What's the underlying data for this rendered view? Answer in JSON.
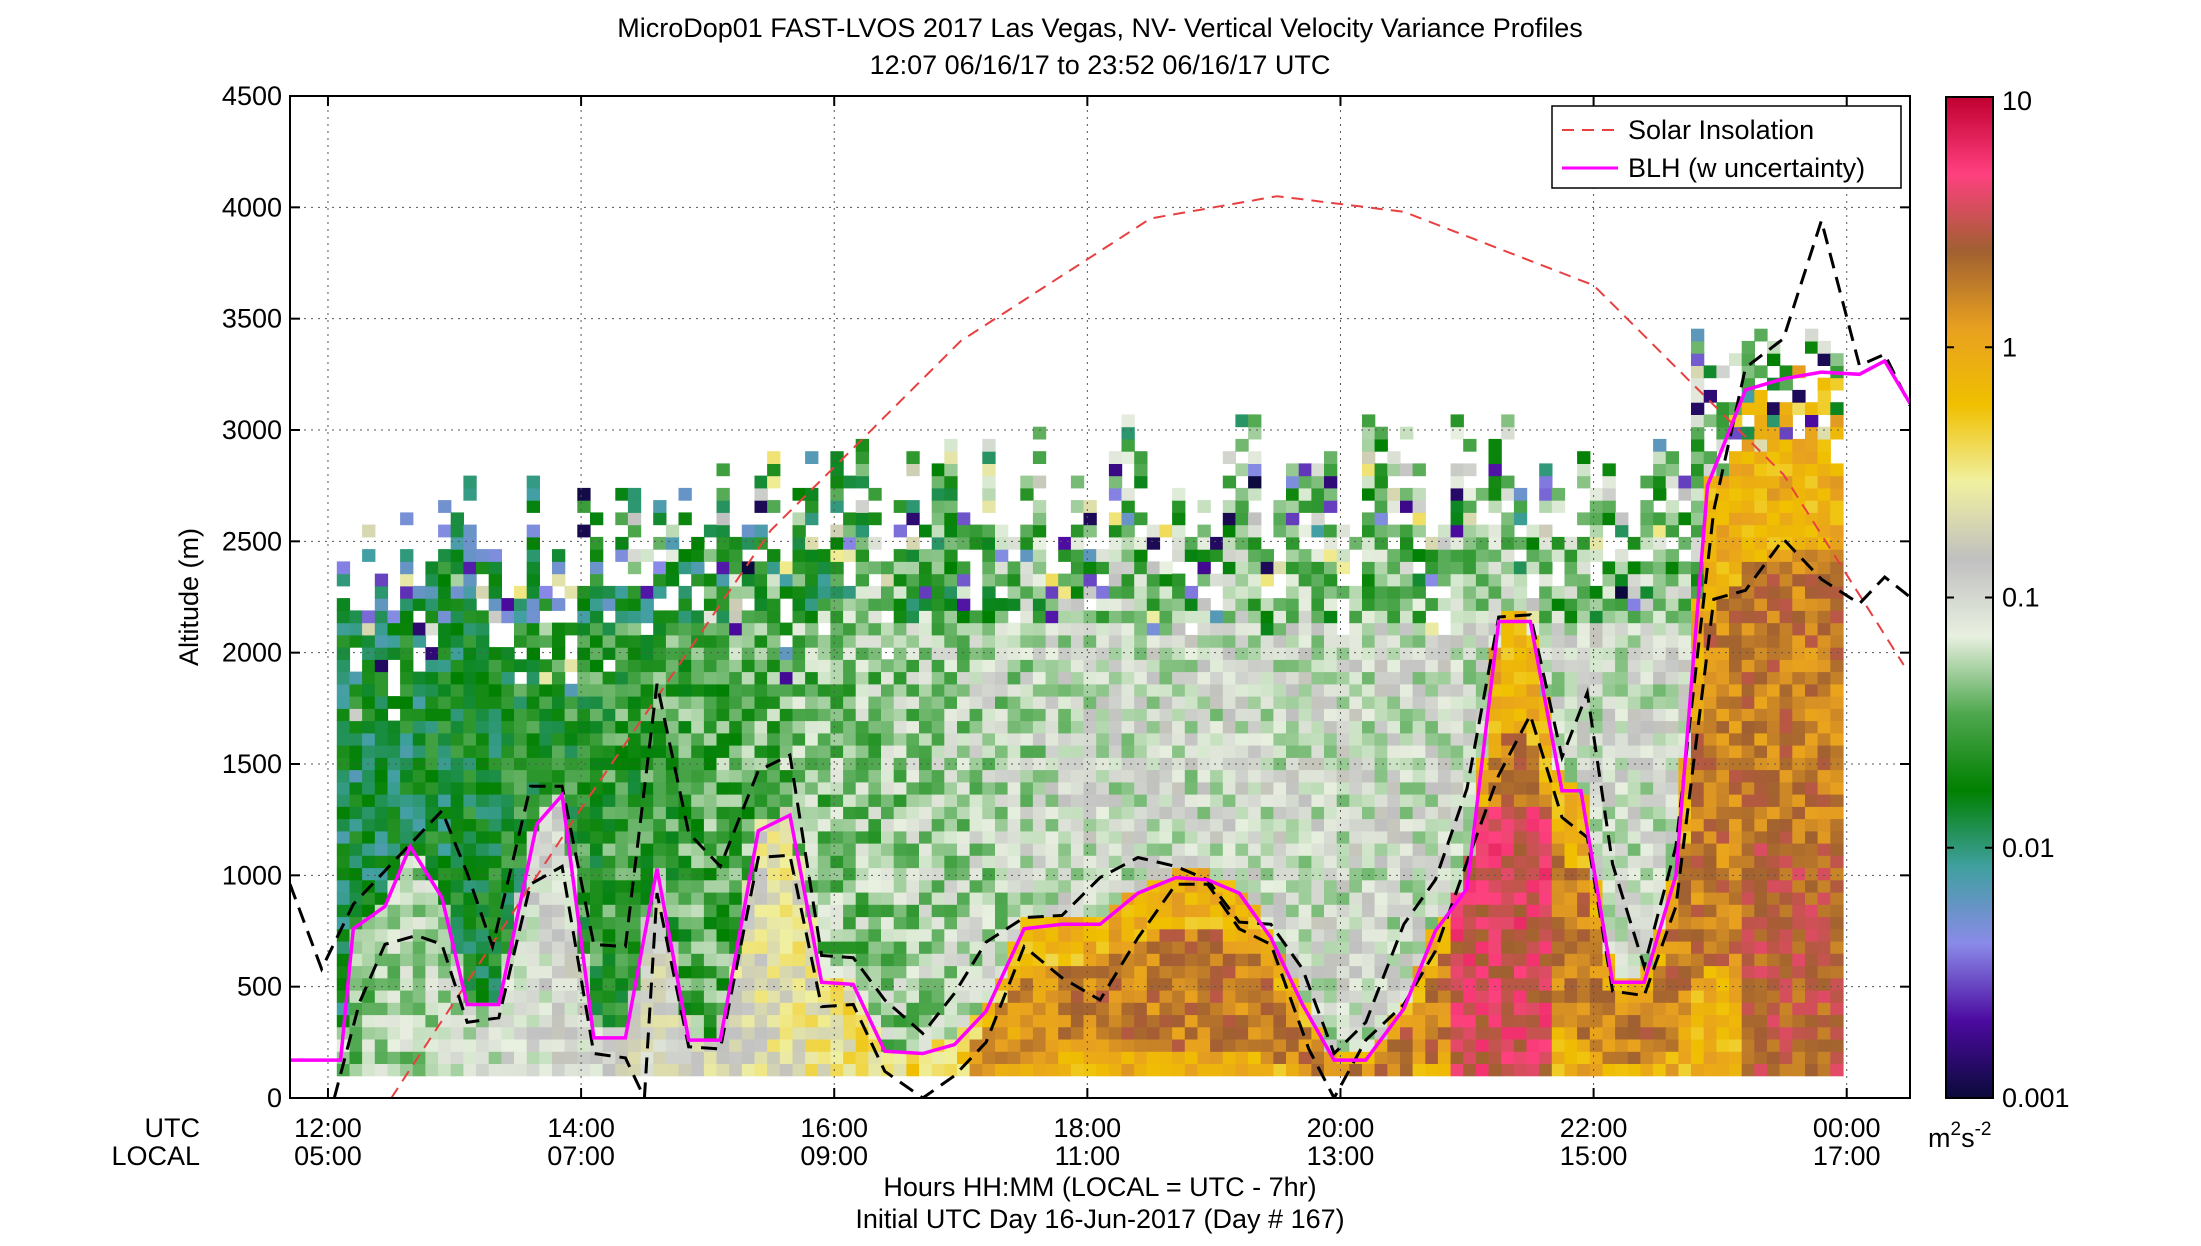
{
  "chart_data": {
    "type": "heatmap",
    "title": "MicroDop01 FAST-LVOS 2017 Las Vegas, NV- Vertical Velocity Variance Profiles",
    "subtitle": "12:07 06/16/17 to 23:52 06/16/17  UTC",
    "ylabel": "Altitude (m)",
    "xlabel": "Hours HH:MM  (LOCAL = UTC - 7hr)",
    "xlabel2": "Initial UTC Day 16-Jun-2017 (Day # 167)",
    "x_row_labels": [
      "UTC",
      "LOCAL"
    ],
    "xlim": [
      11.7,
      24.5
    ],
    "ylim": [
      0,
      4500
    ],
    "x_ticks": [
      {
        "utc": "12:00",
        "local": "05:00",
        "hour": 12
      },
      {
        "utc": "14:00",
        "local": "07:00",
        "hour": 14
      },
      {
        "utc": "16:00",
        "local": "09:00",
        "hour": 16
      },
      {
        "utc": "18:00",
        "local": "11:00",
        "hour": 18
      },
      {
        "utc": "20:00",
        "local": "13:00",
        "hour": 20
      },
      {
        "utc": "22:00",
        "local": "15:00",
        "hour": 22
      },
      {
        "utc": "00:00",
        "local": "17:00",
        "hour": 24
      }
    ],
    "y_ticks": [
      "0",
      "500",
      "1000",
      "1500",
      "2000",
      "2500",
      "3000",
      "3500",
      "4000",
      "4500"
    ],
    "grid": true,
    "legend_position": "top-right",
    "legend": [
      {
        "label": "Solar Insolation",
        "color": "#e84040",
        "style": "dashed"
      },
      {
        "label": "BLH (w uncertainty)",
        "color": "#ff00ff",
        "style": "solid"
      }
    ],
    "colorbar": {
      "scale": "log",
      "range": [
        0.001,
        10
      ],
      "ticks": [
        "10",
        "1",
        "0.1",
        "0.01",
        "0.001"
      ],
      "unit_base": "m",
      "unit_sup1": "2",
      "unit_mid": "s",
      "unit_sup2": "-2",
      "stops": [
        "#0a0a3a",
        "#4b0aa0",
        "#8a8ae8",
        "#40a0a0",
        "#008000",
        "#50a850",
        "#e8f0e0",
        "#c0c0c0",
        "#f0f0a0",
        "#f0c000",
        "#e8a020",
        "#a06030",
        "#ff4080",
        "#c00030"
      ]
    },
    "series": [
      {
        "name": "BLH (w uncertainty)",
        "x": [
          11.7,
          12.1,
          12.2,
          12.45,
          12.65,
          12.9,
          13.1,
          13.35,
          13.65,
          13.85,
          14.1,
          14.35,
          14.6,
          14.85,
          15.1,
          15.4,
          15.65,
          15.9,
          16.15,
          16.4,
          16.7,
          16.95,
          17.2,
          17.5,
          17.8,
          18.1,
          18.4,
          18.7,
          18.95,
          19.2,
          19.45,
          19.7,
          19.95,
          20.2,
          20.5,
          20.75,
          21.0,
          21.25,
          21.5,
          21.75,
          21.9,
          22.15,
          22.4,
          22.65,
          22.9,
          23.2,
          23.5,
          23.8,
          24.1,
          24.3,
          24.5
        ],
        "y": [
          170,
          170,
          760,
          860,
          1130,
          900,
          420,
          420,
          1230,
          1360,
          270,
          270,
          1030,
          260,
          260,
          1200,
          1270,
          520,
          510,
          210,
          200,
          240,
          390,
          760,
          780,
          780,
          920,
          990,
          980,
          920,
          720,
          420,
          170,
          170,
          400,
          750,
          940,
          2140,
          2140,
          1380,
          1380,
          520,
          520,
          1000,
          2750,
          3180,
          3230,
          3260,
          3250,
          3310,
          3120
        ]
      }
    ],
    "blh_upper": [
      [
        11.7,
        960
      ],
      [
        11.95,
        580
      ],
      [
        12.2,
        870
      ],
      [
        12.45,
        1020
      ],
      [
        12.7,
        1170
      ],
      [
        12.9,
        1290
      ],
      [
        13.1,
        1010
      ],
      [
        13.3,
        680
      ],
      [
        13.6,
        1400
      ],
      [
        13.85,
        1400
      ],
      [
        14.1,
        690
      ],
      [
        14.35,
        680
      ],
      [
        14.6,
        1860
      ],
      [
        14.85,
        1190
      ],
      [
        15.1,
        1040
      ],
      [
        15.4,
        1470
      ],
      [
        15.65,
        1540
      ],
      [
        15.9,
        640
      ],
      [
        16.15,
        630
      ],
      [
        16.4,
        440
      ],
      [
        16.7,
        290
      ],
      [
        16.95,
        470
      ],
      [
        17.2,
        700
      ],
      [
        17.5,
        810
      ],
      [
        17.8,
        820
      ],
      [
        18.1,
        990
      ],
      [
        18.4,
        1080
      ],
      [
        18.7,
        1040
      ],
      [
        18.95,
        980
      ],
      [
        19.2,
        790
      ],
      [
        19.45,
        780
      ],
      [
        19.7,
        580
      ],
      [
        19.95,
        200
      ],
      [
        20.2,
        340
      ],
      [
        20.5,
        780
      ],
      [
        20.75,
        980
      ],
      [
        21.0,
        1390
      ],
      [
        21.25,
        2160
      ],
      [
        21.5,
        2170
      ],
      [
        21.75,
        1530
      ],
      [
        21.95,
        1820
      ],
      [
        22.15,
        1050
      ],
      [
        22.4,
        590
      ],
      [
        22.65,
        1130
      ],
      [
        22.95,
        2640
      ],
      [
        23.2,
        3280
      ],
      [
        23.5,
        3410
      ],
      [
        23.8,
        3940
      ],
      [
        24.1,
        3290
      ],
      [
        24.3,
        3340
      ],
      [
        24.5,
        3110
      ]
    ],
    "blh_lower": [
      [
        12.05,
        0
      ],
      [
        12.25,
        430
      ],
      [
        12.45,
        690
      ],
      [
        12.7,
        730
      ],
      [
        12.9,
        690
      ],
      [
        13.1,
        340
      ],
      [
        13.35,
        360
      ],
      [
        13.6,
        960
      ],
      [
        13.85,
        1040
      ],
      [
        14.1,
        200
      ],
      [
        14.35,
        180
      ],
      [
        14.5,
        0
      ],
      [
        14.6,
        920
      ],
      [
        14.85,
        230
      ],
      [
        15.1,
        220
      ],
      [
        15.4,
        1080
      ],
      [
        15.65,
        1090
      ],
      [
        15.9,
        410
      ],
      [
        16.15,
        420
      ],
      [
        16.4,
        120
      ],
      [
        16.7,
        0
      ],
      [
        16.95,
        100
      ],
      [
        17.2,
        250
      ],
      [
        17.5,
        680
      ],
      [
        17.8,
        540
      ],
      [
        18.1,
        440
      ],
      [
        18.4,
        720
      ],
      [
        18.7,
        960
      ],
      [
        18.95,
        960
      ],
      [
        19.2,
        760
      ],
      [
        19.45,
        690
      ],
      [
        19.75,
        220
      ],
      [
        19.95,
        0
      ],
      [
        20.2,
        260
      ],
      [
        20.5,
        420
      ],
      [
        20.75,
        660
      ],
      [
        21.0,
        1060
      ],
      [
        21.25,
        1450
      ],
      [
        21.5,
        1720
      ],
      [
        21.75,
        1260
      ],
      [
        21.95,
        1170
      ],
      [
        22.15,
        480
      ],
      [
        22.4,
        460
      ],
      [
        22.65,
        860
      ],
      [
        22.95,
        2240
      ],
      [
        23.2,
        2280
      ],
      [
        23.5,
        2510
      ],
      [
        23.8,
        2330
      ],
      [
        24.1,
        2220
      ],
      [
        24.3,
        2340
      ],
      [
        24.5,
        2250
      ]
    ],
    "solar_insolation_curve": [
      [
        12.5,
        0
      ],
      [
        14,
        1300
      ],
      [
        15.5,
        2550
      ],
      [
        17,
        3400
      ],
      [
        18.5,
        3950
      ],
      [
        19.5,
        4050
      ],
      [
        20.5,
        3980
      ],
      [
        22,
        3650
      ],
      [
        23.5,
        2800
      ],
      [
        24.5,
        1900
      ]
    ]
  }
}
